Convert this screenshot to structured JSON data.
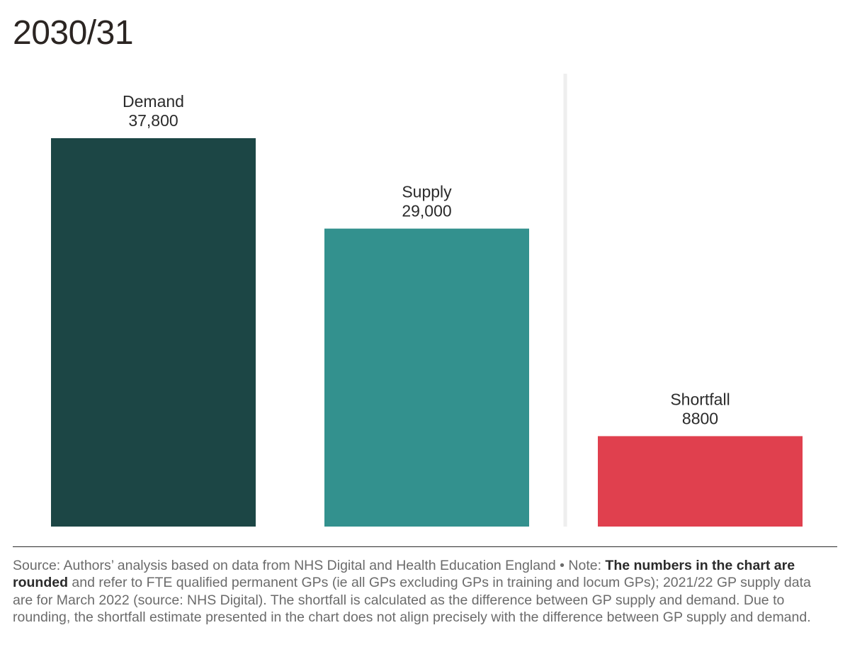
{
  "chart_data": {
    "type": "bar",
    "title": "2030/31",
    "categories": [
      "Demand",
      "Supply",
      "Shortfall"
    ],
    "values": [
      37800,
      29000,
      8800
    ],
    "value_labels": [
      "37,800",
      "29,000",
      "8800"
    ],
    "colors": [
      "#1c4645",
      "#33918e",
      "#e0404e"
    ],
    "xlabel": "",
    "ylabel": "",
    "ylim": [
      0,
      37800
    ],
    "grid": false,
    "legend": "none",
    "separator_before": "Shortfall",
    "separator_color": "#eeeeee"
  },
  "footer": {
    "source_prefix": "Source: Authors’ analysis based on data from NHS Digital and Health Education England • Note: ",
    "note_bold": "The numbers in the chart are rounded",
    "note_rest": " and refer to FTE qualified permanent GPs (ie all GPs excluding GPs in training and locum GPs); 2021/22 GP supply data are for March 2022 (source: NHS Digital). The shortfall is calculated as the difference between GP supply and demand. Due to rounding, the shortfall estimate presented in the chart does not align precisely with the difference between GP supply and demand."
  }
}
